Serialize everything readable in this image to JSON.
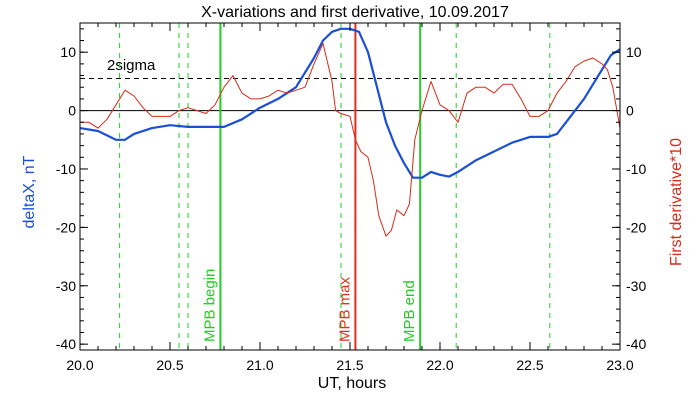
{
  "chart_data": {
    "type": "line",
    "title": "X-variations and first derivative, 10.09.2017",
    "xlabel": "UT, hours",
    "ylabel_left": "deltaX, nT",
    "ylabel_right": "First derivative*10",
    "xlim": [
      20.0,
      23.0
    ],
    "ylim": [
      -41,
      15
    ],
    "x_ticks": [
      20.0,
      20.5,
      21.0,
      21.5,
      22.0,
      22.5,
      23.0
    ],
    "x_tick_labels": [
      "20.0",
      "20.5",
      "21.0",
      "21.5",
      "22.0",
      "22.5",
      "23.0"
    ],
    "y_ticks": [
      10,
      0,
      -10,
      -20,
      -30,
      -40
    ],
    "y_tick_labels": [
      "10",
      "0",
      "-10",
      "-20",
      "-30",
      "-40"
    ],
    "grid": false,
    "series": [
      {
        "name": "deltaX, nT",
        "color": "#1a4fd6",
        "x": [
          20.0,
          20.1,
          20.2,
          20.25,
          20.3,
          20.4,
          20.5,
          20.6,
          20.7,
          20.8,
          20.9,
          21.0,
          21.1,
          21.2,
          21.3,
          21.35,
          21.4,
          21.45,
          21.5,
          21.55,
          21.6,
          21.65,
          21.7,
          21.75,
          21.8,
          21.85,
          21.9,
          21.95,
          22.0,
          22.05,
          22.1,
          22.2,
          22.3,
          22.4,
          22.5,
          22.6,
          22.65,
          22.7,
          22.8,
          22.9,
          22.95,
          23.0
        ],
        "y": [
          -3,
          -3.5,
          -5,
          -5,
          -4,
          -3,
          -2.5,
          -2.8,
          -2.8,
          -2.8,
          -1.5,
          0.5,
          2,
          4,
          9,
          12,
          13.5,
          14,
          14,
          13.5,
          10,
          4,
          -2,
          -6,
          -9,
          -11.5,
          -11.5,
          -10.5,
          -11,
          -11.3,
          -10.5,
          -8.5,
          -7,
          -5.5,
          -4.5,
          -4.5,
          -4,
          -2,
          2,
          7,
          9.5,
          10.5
        ]
      },
      {
        "name": "First derivative*10",
        "color": "#d82a1a",
        "x": [
          20.0,
          20.05,
          20.1,
          20.15,
          20.2,
          20.25,
          20.3,
          20.35,
          20.4,
          20.45,
          20.5,
          20.55,
          20.6,
          20.65,
          20.7,
          20.75,
          20.8,
          20.85,
          20.9,
          20.95,
          21.0,
          21.05,
          21.1,
          21.15,
          21.2,
          21.25,
          21.3,
          21.35,
          21.4,
          21.42,
          21.45,
          21.5,
          21.53,
          21.56,
          21.6,
          21.63,
          21.66,
          21.7,
          21.73,
          21.76,
          21.8,
          21.83,
          21.86,
          21.9,
          21.95,
          22.0,
          22.05,
          22.1,
          22.15,
          22.2,
          22.25,
          22.3,
          22.35,
          22.4,
          22.45,
          22.5,
          22.55,
          22.6,
          22.65,
          22.7,
          22.75,
          22.8,
          22.85,
          22.9,
          22.93,
          22.96,
          23.0
        ],
        "y": [
          -2,
          -2,
          -3,
          -1.5,
          1,
          3.5,
          2.5,
          0.5,
          -1,
          -1,
          -1,
          0,
          0.5,
          0,
          -0.5,
          1,
          4,
          6,
          3,
          2,
          2,
          2.5,
          3.5,
          3,
          3.5,
          4,
          8,
          11.5,
          5,
          0,
          -0.5,
          -1,
          -5,
          -7,
          -8,
          -12,
          -18,
          -21.5,
          -20.5,
          -17,
          -18,
          -16,
          -5,
          0,
          5,
          1,
          0,
          -2,
          3,
          4,
          4,
          3,
          4.5,
          4.5,
          2,
          -1,
          -1,
          0,
          3,
          5,
          7.5,
          8.5,
          9,
          8,
          7,
          4,
          -3
        ]
      }
    ],
    "reference_lines": {
      "zero": 0,
      "two_sigma": 5.5,
      "two_sigma_label": "2sigma"
    },
    "vertical_lines": [
      {
        "x": 20.22,
        "style": "dashed",
        "color": "#22cc22",
        "label": ""
      },
      {
        "x": 20.55,
        "style": "dashed",
        "color": "#22cc22",
        "label": ""
      },
      {
        "x": 20.6,
        "style": "dashed",
        "color": "#22cc22",
        "label": ""
      },
      {
        "x": 20.78,
        "style": "solid",
        "color": "#22cc22",
        "label": "MPB begin"
      },
      {
        "x": 21.45,
        "style": "dashed",
        "color": "#22cc22",
        "label": ""
      },
      {
        "x": 21.53,
        "style": "solid",
        "color": "#e0301c",
        "label": "MPB max"
      },
      {
        "x": 21.89,
        "style": "solid",
        "color": "#22cc22",
        "label": "MPB end"
      },
      {
        "x": 22.09,
        "style": "dashed",
        "color": "#22cc22",
        "label": ""
      },
      {
        "x": 22.61,
        "style": "dashed",
        "color": "#22cc22",
        "label": ""
      }
    ]
  }
}
